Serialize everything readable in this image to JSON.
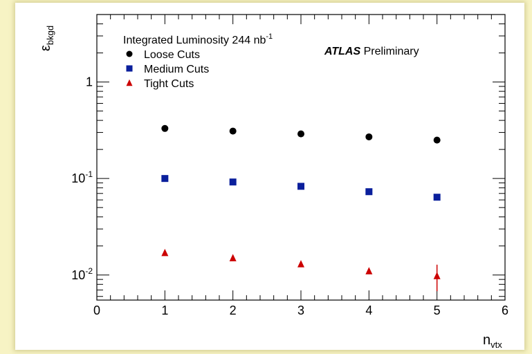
{
  "chart_data": {
    "type": "scatter",
    "title": "",
    "xlabel": "n",
    "xlabel_sub": "vtx",
    "ylabel": "ε",
    "ylabel_sub": "bkgd",
    "xlim": [
      0,
      6
    ],
    "ylim": [
      0.0055,
      5.0
    ],
    "yscale": "log",
    "grid": false,
    "legend_position": "top-left",
    "x_ticks": [
      {
        "value": 0,
        "label": "0"
      },
      {
        "value": 1,
        "label": "1"
      },
      {
        "value": 2,
        "label": "2"
      },
      {
        "value": 3,
        "label": "3"
      },
      {
        "value": 4,
        "label": "4"
      },
      {
        "value": 5,
        "label": "5"
      },
      {
        "value": 6,
        "label": "6"
      }
    ],
    "y_ticks": [
      {
        "value": 1,
        "base": "1",
        "exp": ""
      },
      {
        "value": 0.1,
        "base": "10",
        "exp": "-1"
      },
      {
        "value": 0.01,
        "base": "10",
        "exp": "-2"
      }
    ],
    "legend_header": {
      "text": "Integrated Luminosity 244 nb",
      "sup": "-1"
    },
    "annotation": {
      "bold": "ATLAS",
      "normal": "Preliminary"
    },
    "series": [
      {
        "name": "Loose Cuts",
        "marker": "circle",
        "color": "#000000",
        "x": [
          1,
          2,
          3,
          4,
          5
        ],
        "y": [
          0.33,
          0.31,
          0.29,
          0.27,
          0.25
        ],
        "yerr": [
          0,
          0,
          0,
          0,
          0
        ]
      },
      {
        "name": "Medium Cuts",
        "marker": "square",
        "color": "#0a1f9c",
        "x": [
          1,
          2,
          3,
          4,
          5
        ],
        "y": [
          0.1,
          0.092,
          0.083,
          0.073,
          0.064
        ],
        "yerr": [
          0,
          0,
          0,
          0,
          0
        ]
      },
      {
        "name": "Tight Cuts",
        "marker": "triangle",
        "color": "#cc0000",
        "x": [
          1,
          2,
          3,
          4,
          5
        ],
        "y": [
          0.017,
          0.015,
          0.013,
          0.011,
          0.0098
        ],
        "yerr": [
          0,
          0,
          0,
          0,
          0.003
        ]
      }
    ]
  }
}
